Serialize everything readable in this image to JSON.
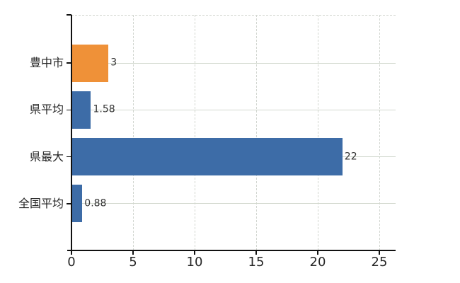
{
  "chart_data": {
    "type": "bar",
    "orientation": "horizontal",
    "title": "",
    "categories": [
      "豊中市",
      "県平均",
      "県最大",
      "全国平均"
    ],
    "values": [
      3,
      1.58,
      22,
      0.88
    ],
    "value_labels": [
      "3",
      "1.58",
      "22",
      "0.88"
    ],
    "bar_colors": [
      "#ef9138",
      "#3d6ca7",
      "#3d6ca7",
      "#3d6ca7"
    ],
    "x_axis": {
      "min": 0,
      "max": 25,
      "ticks": [
        0,
        5,
        10,
        15,
        20,
        25
      ],
      "tick_labels": [
        "0",
        "5",
        "10",
        "15",
        "20",
        "25"
      ]
    },
    "grid": {
      "vertical_gridlines": "dashed, at x ticks 5-25",
      "horizontal_gridlines": "solid, at category centers",
      "top_border": "dashed"
    },
    "legend": "none"
  },
  "colors": {
    "bar_orange": "#ef9138",
    "bar_blue": "#3d6ca7",
    "grid": "#d2d6d0",
    "axis": "#111111",
    "text": "#262626",
    "value_text": "#333333",
    "background": "#ffffff"
  }
}
